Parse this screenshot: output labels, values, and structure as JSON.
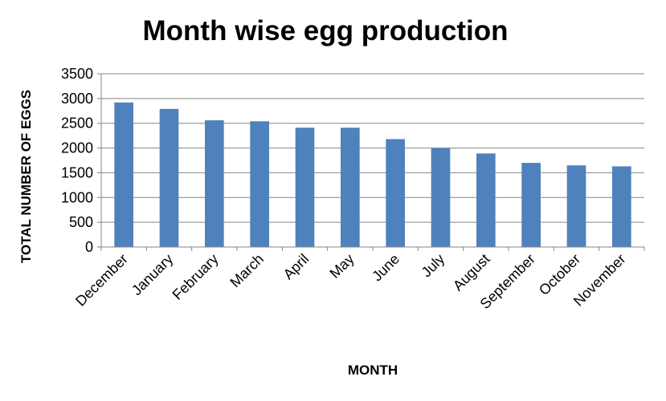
{
  "chart_data": {
    "type": "bar",
    "title": "Month wise egg production",
    "xlabel": "MONTH",
    "ylabel": "TOTAL NUMBER OF EGGS",
    "categories": [
      "December",
      "January",
      "February",
      "March",
      "April",
      "May",
      "June",
      "July",
      "August",
      "September",
      "October",
      "November"
    ],
    "values": [
      2920,
      2790,
      2560,
      2540,
      2410,
      2410,
      2180,
      2000,
      1890,
      1700,
      1650,
      1630
    ],
    "ylim": [
      0,
      3500
    ],
    "yticks": [
      "0",
      "500",
      "1000",
      "1500",
      "2000",
      "2500",
      "3000",
      "3500"
    ],
    "grid": "horizontal",
    "legend": "none",
    "bar_color": "#4F81BD"
  }
}
